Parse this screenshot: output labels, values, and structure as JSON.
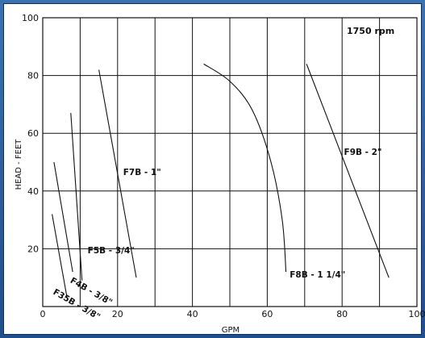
{
  "chart_data": {
    "type": "line",
    "xlabel": "GPM",
    "ylabel": "HEAD - FEET",
    "xlim": [
      0,
      100
    ],
    "ylim": [
      0,
      100
    ],
    "x_ticks": [
      0,
      20,
      40,
      60,
      80,
      100
    ],
    "y_ticks": [
      20,
      40,
      60,
      80,
      100
    ],
    "grid": true,
    "annotation": "1750 rpm",
    "series": [
      {
        "name": "F35B - 3/8\"",
        "x": [
          2.5,
          6.5
        ],
        "y": [
          32,
          3
        ]
      },
      {
        "name": "F4B - 3/8\"",
        "x": [
          3,
          8
        ],
        "y": [
          50,
          12
        ]
      },
      {
        "name": "F5B - 3/4\"",
        "x": [
          7.5,
          10.5
        ],
        "y": [
          67,
          9
        ]
      },
      {
        "name": "F7B - 1\"",
        "x": [
          15,
          25
        ],
        "y": [
          82,
          10
        ]
      },
      {
        "name": "F8B - 1 1/4\"",
        "x": [
          43,
          50,
          56,
          61,
          64,
          65
        ],
        "y": [
          84,
          78,
          68,
          50,
          30,
          12
        ]
      },
      {
        "name": "F9B - 2\"",
        "x": [
          70.5,
          92.5
        ],
        "y": [
          84,
          10
        ]
      }
    ]
  }
}
